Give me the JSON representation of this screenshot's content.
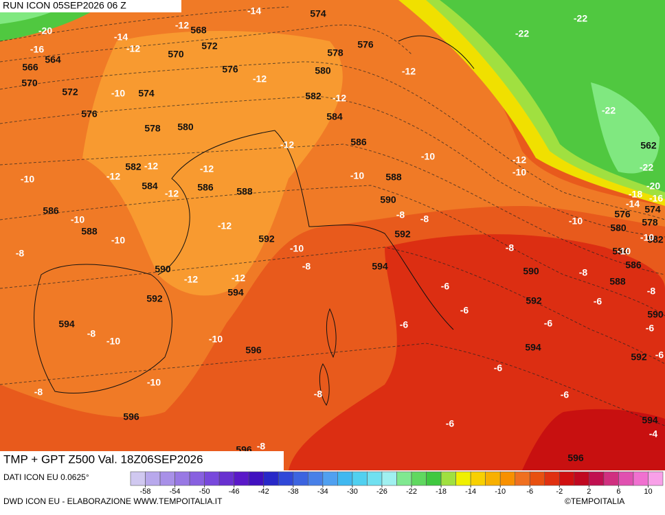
{
  "header": {
    "run": "RUN ICON 05SEP2026 06 Z"
  },
  "footer": {
    "title": "TMP + GPT Z500 Val. 18Z06SEP2026",
    "source": "DATI ICON EU 0.0625°",
    "credit": "DWD ICON EU - ELABORAZIONE WWW.TEMPOITALIA.IT",
    "brand": "©TEMPOITALIA"
  },
  "colorbar": {
    "lim": [
      -60,
      12
    ],
    "colors": [
      "#d0c8f0",
      "#b8a8ec",
      "#a890e8",
      "#9878e4",
      "#8860e0",
      "#7848dc",
      "#6830d0",
      "#5a18c8",
      "#4010c0",
      "#2828c8",
      "#3048d8",
      "#3c64e0",
      "#4880e8",
      "#50a0f0",
      "#40b8f0",
      "#50d0f0",
      "#70e0f0",
      "#a0f0f0",
      "#80e890",
      "#60d860",
      "#40c840",
      "#a0e040",
      "#f0f000",
      "#f8d000",
      "#f8b000",
      "#f89000",
      "#f07020",
      "#e85010",
      "#e03010",
      "#d01010",
      "#c00820",
      "#c01050",
      "#d03080",
      "#e050b0",
      "#f070d0",
      "#f8a0e8"
    ],
    "ticks": [
      -58,
      -54,
      -50,
      -46,
      -42,
      -38,
      -34,
      -30,
      -26,
      -22,
      -18,
      -14,
      -10,
      -6,
      -2,
      2,
      6,
      10
    ]
  },
  "map": {
    "gpt_labels": [
      568,
      570,
      572,
      566,
      564,
      570,
      572,
      574,
      576,
      576,
      578,
      580,
      582,
      584,
      586,
      588,
      586,
      588,
      592,
      590,
      592,
      594,
      594,
      596,
      596,
      574,
      578,
      576,
      580,
      582,
      584,
      586,
      588,
      590,
      592,
      594,
      590,
      592,
      594,
      596,
      562,
      576,
      580,
      574,
      578,
      582,
      584,
      586,
      588,
      590,
      592,
      594,
      596
    ],
    "tmp_labels": [
      -14,
      -12,
      -14,
      -12,
      -20,
      -16,
      -10,
      -12,
      -12,
      -12,
      -22,
      -22,
      -22,
      -22,
      -12,
      -10,
      -12,
      -12,
      -12,
      -12,
      -10,
      -10,
      -12,
      -10,
      -20,
      -18,
      -16,
      -14,
      -10,
      -10,
      -10,
      -12,
      -8,
      -8,
      -8,
      -10,
      -10,
      -10,
      -8,
      -12,
      -12,
      -8,
      -8,
      -8,
      -6,
      -6,
      -6,
      -6,
      -6,
      -6,
      -8,
      -10,
      -10,
      -6,
      -6,
      -10,
      -8,
      -8,
      -6,
      -6,
      -4,
      -8
    ]
  }
}
